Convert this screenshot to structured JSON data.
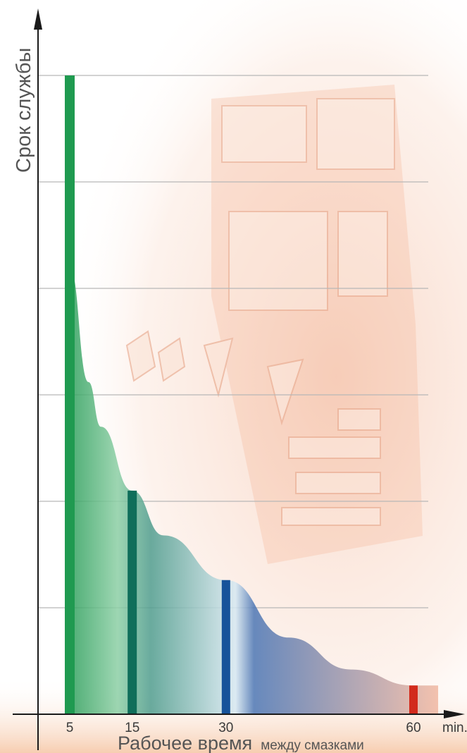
{
  "chart_data": {
    "type": "bar",
    "ylabel": "Срок службы",
    "xlabel_main": "Рабочее время",
    "xlabel_sub": "между смазками",
    "x_unit": "min.",
    "x_ticks": [
      "5",
      "15",
      "30",
      "60"
    ],
    "grid": true,
    "grid_lines": 6,
    "categories": [
      "5",
      "15",
      "30",
      "60"
    ],
    "values": [
      100,
      35,
      21,
      4.5
    ],
    "curve": {
      "x": [
        5,
        8,
        10,
        15,
        20,
        30,
        40,
        50,
        60
      ],
      "y": [
        70,
        52,
        45,
        35,
        28,
        21,
        12,
        7,
        4.5
      ]
    },
    "colors": [
      "#1f9a50",
      "#0f6e5a",
      "#17539a",
      "#d22a1c"
    ]
  }
}
